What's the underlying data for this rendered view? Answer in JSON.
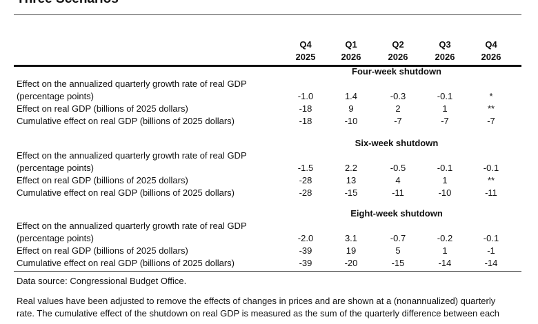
{
  "title": "Three Scenarios",
  "columns": [
    {
      "quarter": "Q4",
      "year": "2025"
    },
    {
      "quarter": "Q1",
      "year": "2026"
    },
    {
      "quarter": "Q2",
      "year": "2026"
    },
    {
      "quarter": "Q3",
      "year": "2026"
    },
    {
      "quarter": "Q4",
      "year": "2026"
    }
  ],
  "sections": [
    {
      "heading": "Four-week shutdown",
      "rows": [
        {
          "label": "Effect on the annualized quarterly growth rate of real GDP",
          "label2": "(percentage points)",
          "values": [
            "-1.0",
            "1.4",
            "-0.3",
            "-0.1",
            "*"
          ]
        },
        {
          "label": "Effect on real GDP (billions of 2025 dollars)",
          "values": [
            "-18",
            "9",
            "2",
            "1",
            "**"
          ]
        },
        {
          "label": "Cumulative effect on real GDP (billions of 2025 dollars)",
          "values": [
            "-18",
            "-10",
            "-7",
            "-7",
            "-7"
          ]
        }
      ]
    },
    {
      "heading": "Six-week shutdown",
      "rows": [
        {
          "label": "Effect on the annualized quarterly growth rate of real GDP",
          "label2": "(percentage points)",
          "values": [
            "-1.5",
            "2.2",
            "-0.5",
            "-0.1",
            "-0.1"
          ]
        },
        {
          "label": "Effect on real GDP (billions of 2025 dollars)",
          "values": [
            "-28",
            "13",
            "4",
            "1",
            "**"
          ]
        },
        {
          "label": "Cumulative effect on real GDP (billions of 2025 dollars)",
          "values": [
            "-28",
            "-15",
            "-11",
            "-10",
            "-11"
          ]
        }
      ]
    },
    {
      "heading": "Eight-week shutdown",
      "rows": [
        {
          "label": "Effect on the annualized quarterly growth rate of real GDP",
          "label2": "(percentage points)",
          "values": [
            "-2.0",
            "3.1",
            "-0.7",
            "-0.2",
            "-0.1"
          ]
        },
        {
          "label": "Effect on real GDP (billions of 2025 dollars)",
          "values": [
            "-39",
            "19",
            "5",
            "1",
            "-1"
          ]
        },
        {
          "label": "Cumulative effect on real GDP (billions of 2025 dollars)",
          "values": [
            "-39",
            "-20",
            "-15",
            "-14",
            "-14"
          ]
        }
      ]
    }
  ],
  "source": "Data source: Congressional Budget Office.",
  "notes": [
    "Real values have been adjusted to remove the effects of changes in prices and are shown at a (nonannualized) quarterly",
    "rate. The cumulative effect of the shutdown on real GDP is measured as the sum of the quarterly difference between each"
  ]
}
